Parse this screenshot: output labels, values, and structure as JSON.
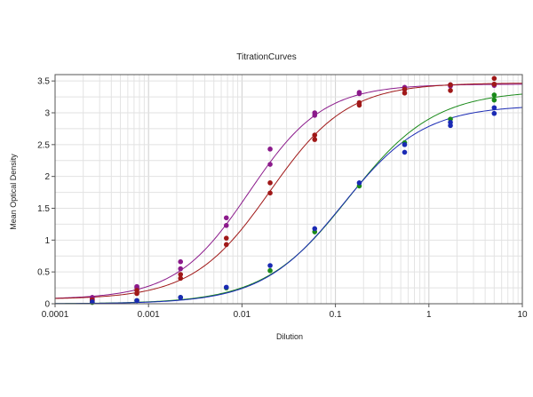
{
  "chart_data": {
    "type": "scatter",
    "title": "TitrationCurves",
    "xlabel": "Dilution",
    "ylabel": "Mean Optical Density",
    "x_scale": "log",
    "xlim": [
      0.0001,
      10
    ],
    "ylim": [
      0,
      3.6
    ],
    "grid": true,
    "x_ticks": [
      "0.0001",
      "0.001",
      "0.01",
      "0.1",
      "1",
      "10"
    ],
    "y_ticks": [
      "0",
      "0.5",
      "1",
      "1.5",
      "2",
      "2.5",
      "3",
      "3.5"
    ],
    "x_tick_values": [
      0.0001,
      0.001,
      0.01,
      0.1,
      1,
      10
    ],
    "y_tick_values": [
      0,
      0.5,
      1,
      1.5,
      2,
      2.5,
      3,
      3.5
    ],
    "series": [
      {
        "color": "#8b1a8b",
        "curve": {
          "bottom": 0.07,
          "top": 3.45,
          "ec50": 0.012,
          "hill": 1.1
        },
        "points": [
          {
            "x": 0.00025,
            "y": 0.1
          },
          {
            "x": 0.00025,
            "y": 0.08
          },
          {
            "x": 0.00075,
            "y": 0.27
          },
          {
            "x": 0.00075,
            "y": 0.25
          },
          {
            "x": 0.0022,
            "y": 0.66
          },
          {
            "x": 0.0022,
            "y": 0.55
          },
          {
            "x": 0.0068,
            "y": 1.35
          },
          {
            "x": 0.0068,
            "y": 1.23
          },
          {
            "x": 0.02,
            "y": 2.43
          },
          {
            "x": 0.02,
            "y": 2.19
          },
          {
            "x": 0.06,
            "y": 3.0
          },
          {
            "x": 0.06,
            "y": 2.96
          },
          {
            "x": 0.18,
            "y": 3.32
          },
          {
            "x": 0.18,
            "y": 3.3
          },
          {
            "x": 0.55,
            "y": 3.4
          },
          {
            "x": 0.55,
            "y": 3.37
          },
          {
            "x": 1.7,
            "y": 3.44
          },
          {
            "x": 1.7,
            "y": 3.42
          },
          {
            "x": 5.0,
            "y": 3.45
          },
          {
            "x": 5.0,
            "y": 3.43
          }
        ]
      },
      {
        "color": "#a01818",
        "curve": {
          "bottom": 0.07,
          "top": 3.47,
          "ec50": 0.02,
          "hill": 1.05
        },
        "points": [
          {
            "x": 0.00025,
            "y": 0.06
          },
          {
            "x": 0.00025,
            "y": 0.05
          },
          {
            "x": 0.00075,
            "y": 0.21
          },
          {
            "x": 0.00075,
            "y": 0.16
          },
          {
            "x": 0.0022,
            "y": 0.46
          },
          {
            "x": 0.0022,
            "y": 0.4
          },
          {
            "x": 0.0068,
            "y": 1.03
          },
          {
            "x": 0.0068,
            "y": 0.93
          },
          {
            "x": 0.02,
            "y": 1.9
          },
          {
            "x": 0.02,
            "y": 1.74
          },
          {
            "x": 0.06,
            "y": 2.65
          },
          {
            "x": 0.06,
            "y": 2.58
          },
          {
            "x": 0.18,
            "y": 3.16
          },
          {
            "x": 0.18,
            "y": 3.12
          },
          {
            "x": 0.55,
            "y": 3.37
          },
          {
            "x": 0.55,
            "y": 3.31
          },
          {
            "x": 1.7,
            "y": 3.44
          },
          {
            "x": 1.7,
            "y": 3.35
          },
          {
            "x": 5.0,
            "y": 3.54
          },
          {
            "x": 5.0,
            "y": 3.45
          }
        ]
      },
      {
        "color": "#1a8a1a",
        "curve": {
          "bottom": 0.0,
          "top": 3.35,
          "ec50": 0.14,
          "hill": 0.95
        },
        "points": [
          {
            "x": 0.00025,
            "y": 0.02
          },
          {
            "x": 0.00075,
            "y": 0.05
          },
          {
            "x": 0.0022,
            "y": 0.1
          },
          {
            "x": 0.0068,
            "y": 0.25
          },
          {
            "x": 0.02,
            "y": 0.52
          },
          {
            "x": 0.06,
            "y": 1.13
          },
          {
            "x": 0.18,
            "y": 1.85
          },
          {
            "x": 0.55,
            "y": 2.53
          },
          {
            "x": 1.7,
            "y": 2.9
          },
          {
            "x": 5.0,
            "y": 3.28
          },
          {
            "x": 5.0,
            "y": 3.2
          }
        ]
      },
      {
        "color": "#1a2ab4",
        "curve": {
          "bottom": 0.0,
          "top": 3.12,
          "ec50": 0.12,
          "hill": 1.0
        },
        "points": [
          {
            "x": 0.00025,
            "y": 0.03
          },
          {
            "x": 0.00075,
            "y": 0.05
          },
          {
            "x": 0.0022,
            "y": 0.1
          },
          {
            "x": 0.0068,
            "y": 0.26
          },
          {
            "x": 0.02,
            "y": 0.6
          },
          {
            "x": 0.06,
            "y": 1.18
          },
          {
            "x": 0.18,
            "y": 1.9
          },
          {
            "x": 0.55,
            "y": 2.5
          },
          {
            "x": 0.55,
            "y": 2.38
          },
          {
            "x": 1.7,
            "y": 2.85
          },
          {
            "x": 1.7,
            "y": 2.8
          },
          {
            "x": 5.0,
            "y": 3.08
          },
          {
            "x": 5.0,
            "y": 2.99
          }
        ]
      }
    ]
  }
}
